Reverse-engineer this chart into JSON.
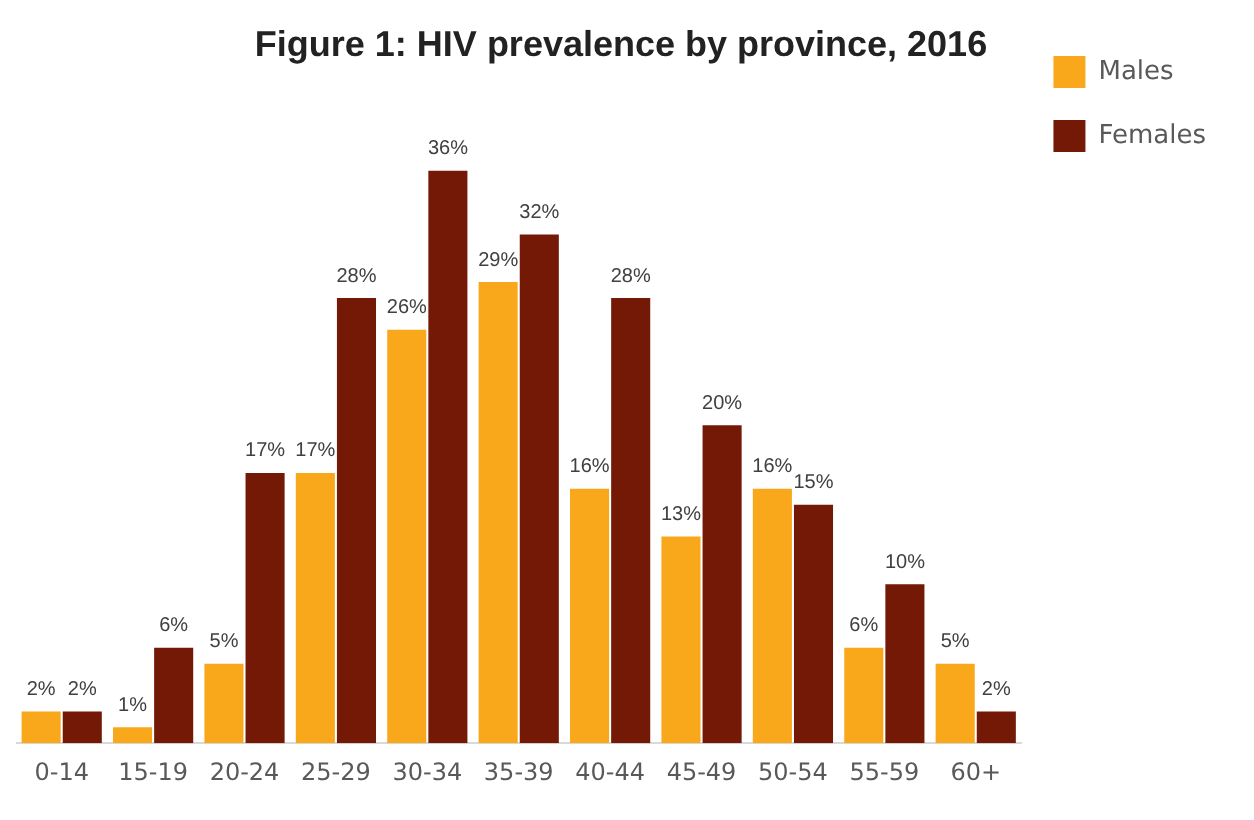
{
  "chart_data": {
    "type": "bar",
    "title": "Figure 1: HIV prevalence by province, 2016",
    "categories": [
      "0-14",
      "15-19",
      "20-24",
      "25-29",
      "30-34",
      "35-39",
      "40-44",
      "45-49",
      "50-54",
      "55-59",
      "60+"
    ],
    "series": [
      {
        "name": "Males",
        "color": "#f9a81b",
        "values": [
          2,
          1,
          5,
          17,
          26,
          29,
          16,
          13,
          16,
          6,
          5
        ],
        "value_labels": [
          "2%",
          "1%",
          "5%",
          "17%",
          "26%",
          "29%",
          "16%",
          "13%",
          "16%",
          "6%",
          "5%"
        ]
      },
      {
        "name": "Females",
        "color": "#741906",
        "values": [
          2,
          6,
          17,
          28,
          36,
          32,
          28,
          20,
          15,
          10,
          2
        ],
        "value_labels": [
          "2%",
          "6%",
          "17%",
          "28%",
          "36%",
          "32%",
          "28%",
          "20%",
          "15%",
          "10%",
          "2%"
        ]
      }
    ],
    "legend": "right",
    "grid": false,
    "tick_labels": "x"
  }
}
